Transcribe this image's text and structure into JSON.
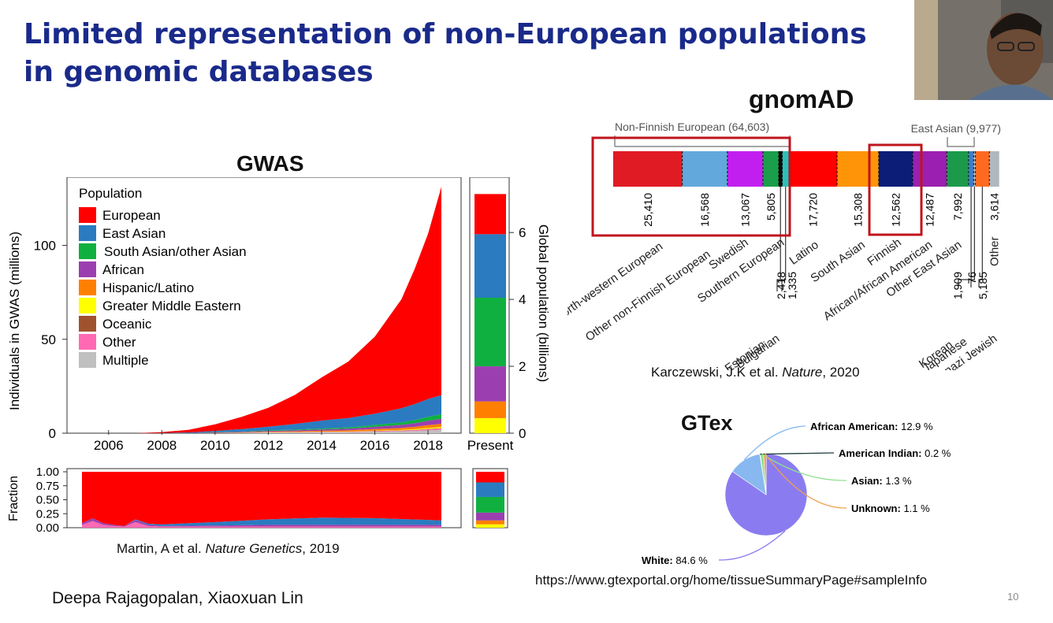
{
  "slide": {
    "title": "Limited representation of non-European populations in genomic databases",
    "authors": "Deepa Rajagopalan, Xiaoxuan Lin",
    "slide_number": "10"
  },
  "gwas": {
    "heading": "GWAS",
    "citation": {
      "pre": "Martin, A et al. ",
      "journal": "Nature Genetics",
      "post": ", 2019"
    }
  },
  "gnomad": {
    "heading": "gnomAD",
    "citation": {
      "pre": "Karczewski, J.K et al. ",
      "journal": "Nature",
      "post": ", 2020"
    }
  },
  "gtex": {
    "heading": "GTex",
    "url": "https://www.gtexportal.org/home/tissueSummaryPage#sampleInfo"
  },
  "colors": {
    "European": "#ff0000",
    "East Asian": "#2a7bc0",
    "South Asian/other Asian": "#10b040",
    "African": "#9b3fb0",
    "Hispanic/Latino": "#ff8000",
    "Greater Middle Eastern": "#ffff00",
    "Oceanic": "#a0522d",
    "Other": "#ff69b4",
    "Multiple": "#c0c0c0",
    "title_blue": "#1a2a8a",
    "highlight_box": "#c0141c"
  },
  "chart_data": [
    {
      "type": "area",
      "name": "gwas-cumulative",
      "xlabel": "",
      "ylabel": "Individuals in GWAS (millions)",
      "xticks": [
        "2006",
        "2008",
        "2010",
        "2012",
        "2014",
        "2016",
        "2018"
      ],
      "yticks": [
        "0",
        "50",
        "100"
      ],
      "xlim": [
        2005,
        2018.5
      ],
      "ylim": [
        0,
        130
      ],
      "legend_title": "Population",
      "legend_position": "top-left",
      "legend": [
        "European",
        "East Asian",
        "South Asian/other Asian",
        "African",
        "Hispanic/Latino",
        "Greater Middle Eastern",
        "Oceanic",
        "Other",
        "Multiple"
      ],
      "x": [
        2005,
        2006,
        2007,
        2008,
        2009,
        2010,
        2011,
        2012,
        2013,
        2014,
        2015,
        2016,
        2017,
        2017.5,
        2018,
        2018.5
      ],
      "series": [
        {
          "name": "Multiple",
          "values": [
            0,
            0,
            0,
            0,
            0,
            0.1,
            0.2,
            0.3,
            0.4,
            0.5,
            0.6,
            0.8,
            1.0,
            1.2,
            1.5,
            1.8
          ]
        },
        {
          "name": "Other",
          "values": [
            0,
            0,
            0,
            0,
            0,
            0,
            0,
            0.1,
            0.1,
            0.2,
            0.2,
            0.3,
            0.4,
            0.5,
            0.6,
            0.7
          ]
        },
        {
          "name": "Oceanic",
          "values": [
            0,
            0,
            0,
            0,
            0,
            0,
            0,
            0,
            0,
            0,
            0,
            0.1,
            0.1,
            0.1,
            0.2,
            0.2
          ]
        },
        {
          "name": "Greater Middle Eastern",
          "values": [
            0,
            0,
            0,
            0,
            0,
            0,
            0,
            0.1,
            0.1,
            0.1,
            0.1,
            0.2,
            0.3,
            0.4,
            0.5,
            0.6
          ]
        },
        {
          "name": "Hispanic/Latino",
          "values": [
            0,
            0,
            0,
            0,
            0,
            0.1,
            0.2,
            0.3,
            0.4,
            0.5,
            0.6,
            0.8,
            1.0,
            1.2,
            1.5,
            1.7
          ]
        },
        {
          "name": "African",
          "values": [
            0,
            0,
            0,
            0,
            0.1,
            0.2,
            0.3,
            0.4,
            0.5,
            0.7,
            0.9,
            1.2,
            1.6,
            1.9,
            2.3,
            2.7
          ]
        },
        {
          "name": "South Asian/other Asian",
          "values": [
            0,
            0,
            0,
            0,
            0,
            0.1,
            0.2,
            0.3,
            0.4,
            0.5,
            0.7,
            1.0,
            1.4,
            1.7,
            2.1,
            2.5
          ]
        },
        {
          "name": "East Asian",
          "values": [
            0,
            0,
            0,
            0.1,
            0.3,
            0.7,
            1.3,
            2.0,
            3.0,
            4.2,
            5.0,
            6.0,
            7.5,
            8.5,
            9.5,
            10.0
          ]
        },
        {
          "name": "European",
          "values": [
            0,
            0,
            0,
            0.5,
            1.4,
            3.5,
            6.5,
            10.0,
            15.5,
            23.0,
            30.0,
            41.0,
            58.0,
            72.0,
            88.0,
            111.0
          ]
        }
      ]
    },
    {
      "type": "bar",
      "name": "global-population",
      "categories": [
        "Present"
      ],
      "ylabel": "Global population (billions)",
      "yticks": [
        "0",
        "2",
        "4",
        "6"
      ],
      "ylim": [
        0,
        7.3
      ],
      "series": [
        {
          "name": "Greater Middle Eastern",
          "values": [
            0.45
          ]
        },
        {
          "name": "Hispanic/Latino",
          "values": [
            0.5
          ]
        },
        {
          "name": "African",
          "values": [
            1.05
          ]
        },
        {
          "name": "South Asian/other Asian",
          "values": [
            2.05
          ]
        },
        {
          "name": "East Asian",
          "values": [
            1.9
          ]
        },
        {
          "name": "European",
          "values": [
            1.2
          ]
        }
      ]
    },
    {
      "type": "area",
      "name": "gwas-fraction",
      "ylabel": "Fraction",
      "yticks": [
        "0.00",
        "0.25",
        "0.50",
        "0.75",
        "1.00"
      ],
      "ylim": [
        0,
        1
      ],
      "x": [
        2005,
        2005.4,
        2005.8,
        2006.2,
        2006.6,
        2007,
        2007.5,
        2008,
        2010,
        2012,
        2014,
        2016,
        2018,
        2018.5
      ],
      "series": [
        {
          "name": "Other",
          "values": [
            0.05,
            0.12,
            0.05,
            0.03,
            0.02,
            0.1,
            0.03,
            0.02,
            0.02,
            0.02,
            0.02,
            0.02,
            0.02,
            0.02
          ]
        },
        {
          "name": "African",
          "values": [
            0.03,
            0.05,
            0.03,
            0.02,
            0.01,
            0.04,
            0.02,
            0.01,
            0.02,
            0.03,
            0.03,
            0.03,
            0.03,
            0.03
          ]
        },
        {
          "name": "East Asian",
          "values": [
            0,
            0,
            0,
            0,
            0,
            0.01,
            0.02,
            0.03,
            0.06,
            0.1,
            0.13,
            0.12,
            0.09,
            0.08
          ]
        },
        {
          "name": "European",
          "values": [
            0.92,
            0.83,
            0.92,
            0.95,
            0.97,
            0.85,
            0.93,
            0.94,
            0.9,
            0.85,
            0.82,
            0.83,
            0.86,
            0.87
          ]
        }
      ]
    },
    {
      "type": "bar",
      "name": "global-fraction",
      "categories": [
        "Present"
      ],
      "series": [
        {
          "name": "Greater Middle Eastern",
          "values": [
            0.06
          ]
        },
        {
          "name": "Hispanic/Latino",
          "values": [
            0.07
          ]
        },
        {
          "name": "African",
          "values": [
            0.14
          ]
        },
        {
          "name": "South Asian/other Asian",
          "values": [
            0.28
          ]
        },
        {
          "name": "East Asian",
          "values": [
            0.26
          ]
        },
        {
          "name": "European",
          "values": [
            0.19
          ]
        }
      ]
    },
    {
      "type": "bar",
      "name": "gnomad-ancestry",
      "orientation": "horizontal-stacked",
      "group_labels": [
        {
          "label": "Non-Finnish European (64,603)"
        },
        {
          "label": "East Asian (9,977)"
        }
      ],
      "bars": [
        {
          "label": "North-western European",
          "value": 25410,
          "value_label": "25,410",
          "color": "#e01b24"
        },
        {
          "label": "Other non-Finnish European",
          "value": 16568,
          "value_label": "16,568",
          "color": "#62a8dc"
        },
        {
          "label": "Swedish",
          "value": 13067,
          "value_label": "13,067",
          "color": "#c11ff0"
        },
        {
          "label": "Southern European",
          "value": 5805,
          "value_label": "5,805",
          "color": "#1a9e4a"
        },
        {
          "label": "Bulgarian",
          "value": 1335,
          "value_label": "1,335",
          "color": "#0a0a0a"
        },
        {
          "label": "Estonian",
          "value": 2418,
          "value_label": "2,418",
          "color": "#2cc0b8"
        },
        {
          "label": "Latino",
          "value": 17720,
          "value_label": "17,720",
          "color": "#ff0000"
        },
        {
          "label": "South Asian",
          "value": 15308,
          "value_label": "15,308",
          "color": "#ff9408"
        },
        {
          "label": "Finnish",
          "value": 12562,
          "value_label": "12,562",
          "color": "#0c1d78"
        },
        {
          "label": "African/African American",
          "value": 12487,
          "value_label": "12,487",
          "color": "#9b1fb0"
        },
        {
          "label": "Other East Asian",
          "value": 7992,
          "value_label": "7,992",
          "color": "#1b9a4a"
        },
        {
          "label": "Korean",
          "value": 1909,
          "value_label": "1,909",
          "color": "#3d7ec9"
        },
        {
          "label": "Japanese",
          "value": 76,
          "value_label": "76",
          "color": "#c0c0c0"
        },
        {
          "label": "Ashkenazi Jewish",
          "value": 5185,
          "value_label": "5,185",
          "color": "#ff6a20"
        },
        {
          "label": "Other",
          "value": 3614,
          "value_label": "3,614",
          "color": "#b0b8bf"
        }
      ],
      "highlighted": [
        "Non-Finnish European (64,603)",
        "Finnish"
      ]
    },
    {
      "type": "pie",
      "name": "gtex-ancestry",
      "slices": [
        {
          "label": "White",
          "value": 84.6,
          "value_label": "84.6 %",
          "color": "#8a7cf0"
        },
        {
          "label": "African American",
          "value": 12.9,
          "value_label": "12.9 %",
          "color": "#88b8f0"
        },
        {
          "label": "American Indian",
          "value": 0.2,
          "value_label": "0.2 %",
          "color": "#1a3a3a"
        },
        {
          "label": "Asian",
          "value": 1.3,
          "value_label": "1.3 %",
          "color": "#90e090"
        },
        {
          "label": "Unknown",
          "value": 1.1,
          "value_label": "1.1 %",
          "color": "#f0a050"
        }
      ]
    }
  ]
}
